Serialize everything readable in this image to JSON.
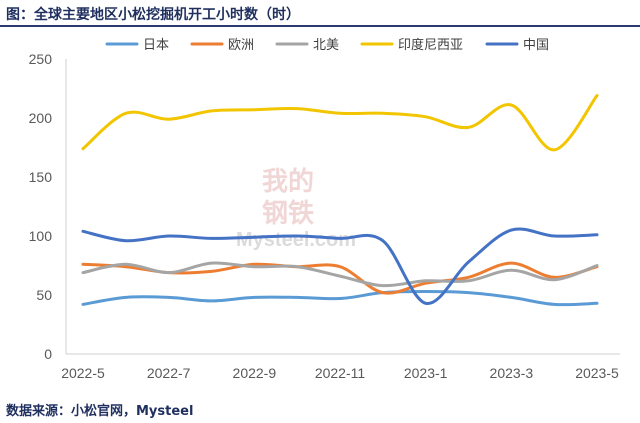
{
  "header": {
    "title": "图：全球主要地区小松挖掘机开工小时数（时）"
  },
  "footer": {
    "source": "数据来源：小松官网，Mysteel"
  },
  "watermark": {
    "line1": "我的",
    "line2": "钢铁",
    "line3": "Mysteel.com"
  },
  "chart_data": {
    "type": "line",
    "title": "全球主要地区小松挖掘机开工小时数（时）",
    "xlabel": "",
    "ylabel": "",
    "ylim": [
      0,
      250
    ],
    "yticks": [
      0,
      50,
      100,
      150,
      200,
      250
    ],
    "x": [
      "2022-5",
      "2022-6",
      "2022-7",
      "2022-8",
      "2022-9",
      "2022-10",
      "2022-11",
      "2022-12",
      "2023-1",
      "2023-2",
      "2023-3",
      "2023-4",
      "2023-5"
    ],
    "xtick_labels": [
      "2022-5",
      "2022-7",
      "2022-9",
      "2022-11",
      "2023-1",
      "2023-3",
      "2023-5"
    ],
    "legend_position": "top",
    "series": [
      {
        "name": "日本",
        "color": "#5b9bd5",
        "values": [
          42,
          48,
          48,
          45,
          48,
          48,
          47,
          52,
          53,
          52,
          48,
          42,
          43
        ]
      },
      {
        "name": "欧洲",
        "color": "#ed7d31",
        "values": [
          76,
          74,
          69,
          70,
          76,
          74,
          74,
          52,
          60,
          65,
          77,
          65,
          74
        ]
      },
      {
        "name": "北美",
        "color": "#a5a5a5",
        "values": [
          69,
          76,
          69,
          77,
          74,
          74,
          66,
          58,
          62,
          62,
          71,
          63,
          75
        ]
      },
      {
        "name": "印度尼西亚",
        "color": "#f2c500",
        "values": [
          174,
          204,
          199,
          206,
          207,
          208,
          204,
          204,
          201,
          192,
          211,
          173,
          219
        ]
      },
      {
        "name": "中国",
        "color": "#4472c4",
        "values": [
          104,
          96,
          100,
          98,
          99,
          100,
          98,
          96,
          43,
          78,
          105,
          100,
          101
        ]
      }
    ]
  }
}
